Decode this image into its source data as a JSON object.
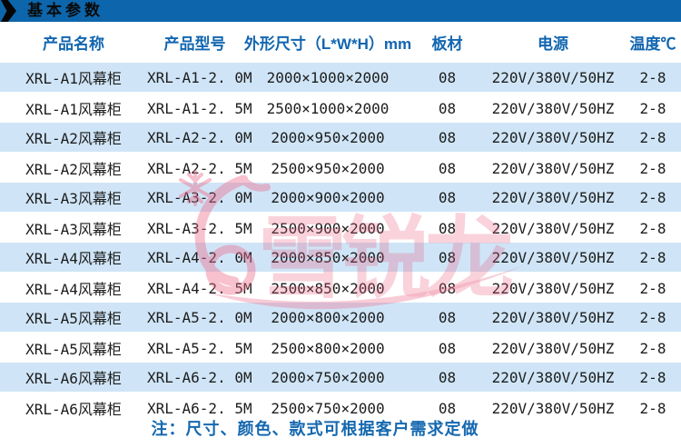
{
  "banner": {
    "title": "基本参数"
  },
  "table": {
    "headers": [
      "产品名称",
      "产品型号",
      "外形尺寸（L*W*H）mm",
      "板材",
      "电源",
      "温度℃"
    ],
    "rows": [
      [
        "XRL-A1风幕柜",
        "XRL-A1-2. 0M",
        "2000×1000×2000",
        "08",
        "220V/380V/50HZ",
        "2-8"
      ],
      [
        "XRL-A1风幕柜",
        "XRL-A1-2. 5M",
        "2500×1000×2000",
        "08",
        "220V/380V/50HZ",
        "2-8"
      ],
      [
        "XRL-A2风幕柜",
        "XRL-A2-2. 0M",
        "2000×950×2000",
        "08",
        "220V/380V/50HZ",
        "2-8"
      ],
      [
        "XRL-A2风幕柜",
        "XRL-A2-2. 5M",
        "2500×950×2000",
        "08",
        "220V/380V/50HZ",
        "2-8"
      ],
      [
        "XRL-A3风幕柜",
        "XRL-A3-2. 0M",
        "2000×900×2000",
        "08",
        "220V/380V/50HZ",
        "2-8"
      ],
      [
        "XRL-A3风幕柜",
        "XRL-A3-2. 5M",
        "2500×900×2000",
        "08",
        "220V/380V/50HZ",
        "2-8"
      ],
      [
        "XRL-A4风幕柜",
        "XRL-A4-2. 0M",
        "2000×850×2000",
        "08",
        "220V/380V/50HZ",
        "2-8"
      ],
      [
        "XRL-A4风幕柜",
        "XRL-A4-2. 5M",
        "2500×850×2000",
        "08",
        "220V/380V/50HZ",
        "2-8"
      ],
      [
        "XRL-A5风幕柜",
        "XRL-A5-2. 0M",
        "2000×800×2000",
        "08",
        "220V/380V/50HZ",
        "2-8"
      ],
      [
        "XRL-A5风幕柜",
        "XRL-A5-2. 5M",
        "2500×800×2000",
        "08",
        "220V/380V/50HZ",
        "2-8"
      ],
      [
        "XRL-A6风幕柜",
        "XRL-A6-2. 0M",
        "2000×750×2000",
        "08",
        "220V/380V/50HZ",
        "2-8"
      ],
      [
        "XRL-A6风幕柜",
        "XRL-A6-2. 5M",
        "2500×750×2000",
        "08",
        "220V/380V/50HZ",
        "2-8"
      ]
    ]
  },
  "note": "注：尺寸、颜色、款式可根据客户需求定做",
  "watermark": {
    "brand": "雪锐龙"
  },
  "colors": {
    "bar_blue": "#0d66ac",
    "header_text_blue": "#1266b0",
    "row_alt_blue": "#cfe5f7",
    "note_blue": "#1568af",
    "watermark_pink": "#ed6e8e"
  }
}
